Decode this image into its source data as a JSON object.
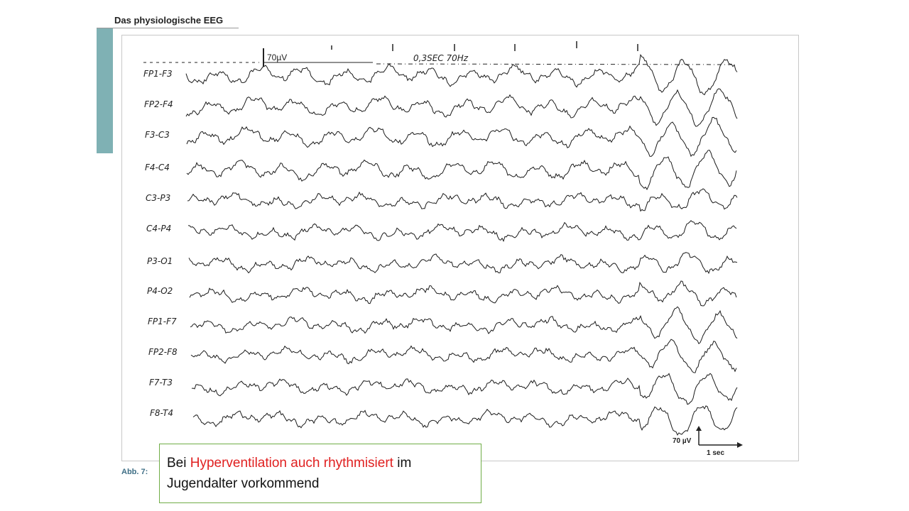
{
  "header": {
    "title": "Das physiologische EEG"
  },
  "figure": {
    "calibration_top": "70µV",
    "settings_label": "0,3SEC 70Hz",
    "scale_amplitude": "70 µV",
    "scale_time": "1 sec",
    "channels": [
      "FP1-F3",
      "FP2-F4",
      "F3-C3",
      "F4-C4",
      "C3-P3",
      "C4-P4",
      "P3-O1",
      "P4-O2",
      "FP1-F7",
      "FP2-F8",
      "F7-T3",
      "F8-T4"
    ],
    "caption_label": "Abb. 7:"
  },
  "callout": {
    "prefix": "Bei ",
    "highlight": "Hyperventilation auch rhythmisiert",
    "suffix": " im Jugendalter vorkommend",
    "highlight_color": "#e02020"
  },
  "colors": {
    "accent_bar": "#7fb1b4",
    "callout_border": "#70ad47",
    "caption": "#3f6f86"
  }
}
